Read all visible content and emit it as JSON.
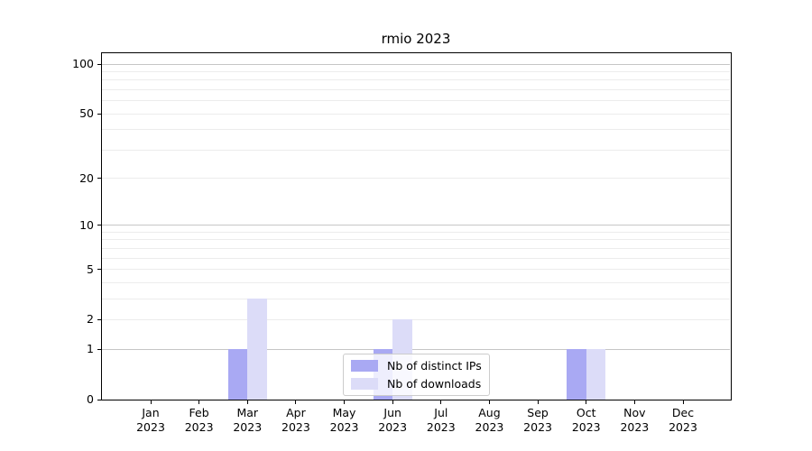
{
  "figure": {
    "title": "rmio 2023"
  },
  "chart_data": {
    "type": "bar",
    "title": "rmio 2023",
    "x_categories": [
      {
        "month": "Jan",
        "year": "2023"
      },
      {
        "month": "Feb",
        "year": "2023"
      },
      {
        "month": "Mar",
        "year": "2023"
      },
      {
        "month": "Apr",
        "year": "2023"
      },
      {
        "month": "May",
        "year": "2023"
      },
      {
        "month": "Jun",
        "year": "2023"
      },
      {
        "month": "Jul",
        "year": "2023"
      },
      {
        "month": "Aug",
        "year": "2023"
      },
      {
        "month": "Sep",
        "year": "2023"
      },
      {
        "month": "Oct",
        "year": "2023"
      },
      {
        "month": "Nov",
        "year": "2023"
      },
      {
        "month": "Dec",
        "year": "2023"
      }
    ],
    "series": [
      {
        "name": "Nb of distinct IPs",
        "color": "#a9a9f3",
        "values": [
          0,
          0,
          1,
          0,
          0,
          1,
          0,
          0,
          0,
          1,
          0,
          0
        ]
      },
      {
        "name": "Nb of downloads",
        "color": "#dcdcf8",
        "values": [
          0,
          0,
          3,
          0,
          0,
          2,
          0,
          0,
          0,
          1,
          0,
          0
        ]
      }
    ],
    "y_axis": {
      "scale": "log1p",
      "tick_labels": [
        0,
        1,
        2,
        5,
        10,
        20,
        50,
        100
      ],
      "major_gridlines": [
        1,
        10,
        100
      ],
      "minor_gridlines": [
        2,
        3,
        4,
        5,
        6,
        7,
        8,
        9,
        20,
        30,
        40,
        50,
        60,
        70,
        80,
        90
      ],
      "range": [
        0,
        117
      ]
    },
    "xlabel": "",
    "ylabel": "",
    "grid": true,
    "legend_position": "lower center"
  }
}
